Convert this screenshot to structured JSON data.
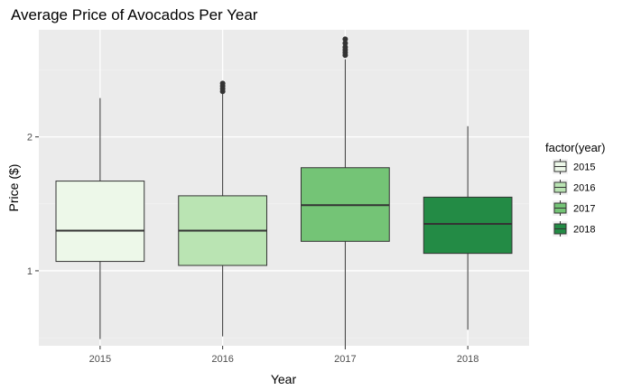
{
  "chart_data": {
    "type": "boxplot",
    "title": "Average Price of Avocados Per Year",
    "xlabel": "Year",
    "ylabel": "Price ($)",
    "ylim": [
      0.44,
      2.8
    ],
    "yticks": [
      1,
      2
    ],
    "ytick_labels": [
      "1",
      "2"
    ],
    "categories": [
      "2015",
      "2016",
      "2017",
      "2018"
    ],
    "legend": {
      "title": "factor(year)",
      "position": "right",
      "entries": [
        "2015",
        "2016",
        "2017",
        "2018"
      ]
    },
    "grid": true,
    "series": [
      {
        "category": "2015",
        "whisker_low": 0.49,
        "q1": 1.07,
        "median": 1.3,
        "q3": 1.67,
        "whisker_high": 2.29,
        "outliers": [],
        "fill": "#edf8e9"
      },
      {
        "category": "2016",
        "whisker_low": 0.51,
        "q1": 1.04,
        "median": 1.3,
        "q3": 1.56,
        "whisker_high": 2.33,
        "outliers": [
          2.34,
          2.36,
          2.38,
          2.4
        ],
        "fill": "#bae4b3"
      },
      {
        "category": "2017",
        "whisker_low": 0.44,
        "q1": 1.22,
        "median": 1.49,
        "q3": 1.77,
        "whisker_high": 2.58,
        "outliers": [
          2.61,
          2.63,
          2.65,
          2.67,
          2.7,
          2.73
        ],
        "fill": "#74c476"
      },
      {
        "category": "2018",
        "whisker_low": 0.56,
        "q1": 1.13,
        "median": 1.35,
        "q3": 1.55,
        "whisker_high": 2.08,
        "outliers": [],
        "fill": "#238b45"
      }
    ],
    "colors": {
      "panel_bg": "#ebebeb",
      "grid_major": "#ffffff",
      "grid_minor": "#f2f2f2",
      "box_stroke": "#333333"
    }
  }
}
